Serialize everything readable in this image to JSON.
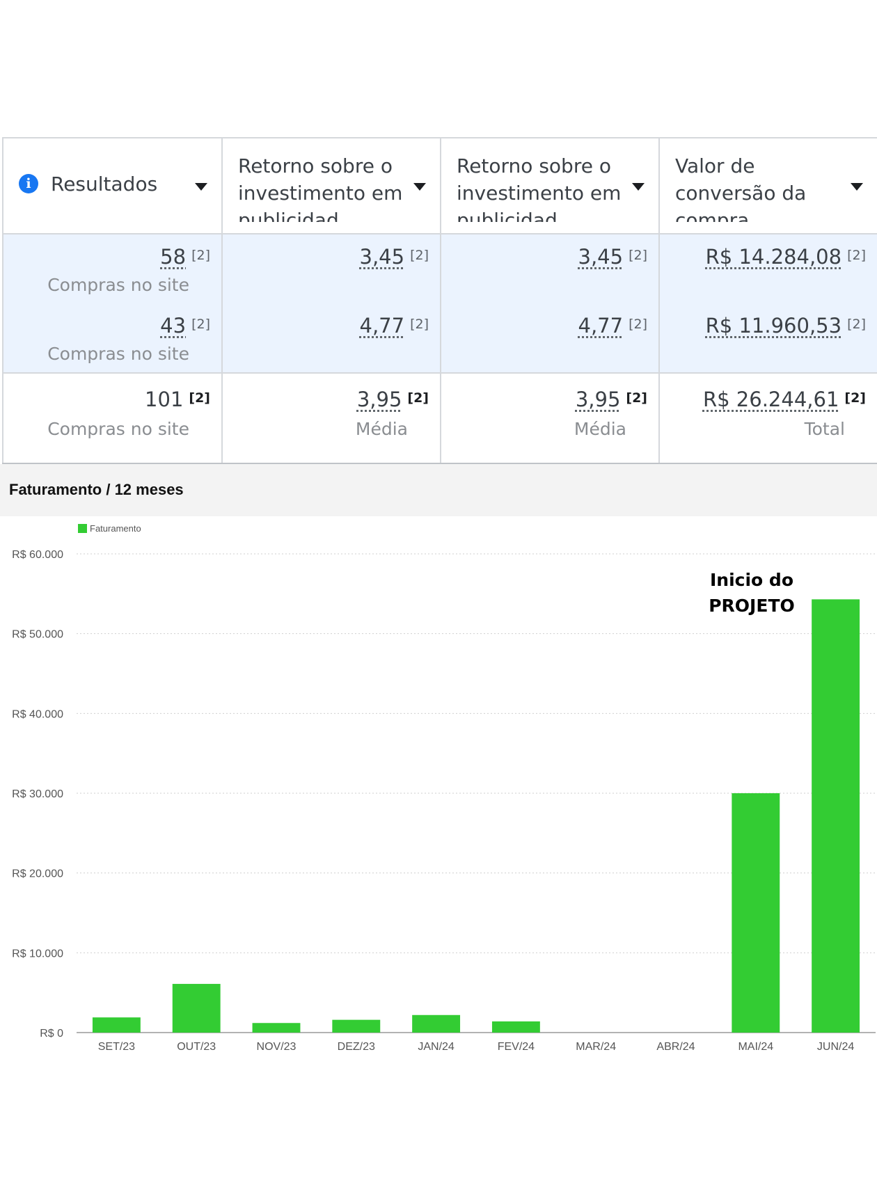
{
  "table": {
    "columns": [
      {
        "title": "Resultados"
      },
      {
        "title": "Retorno sobre o investimento em publicidad"
      },
      {
        "title": "Retorno sobre o investimento em publicidad"
      },
      {
        "title": "Valor de conversão da compra"
      }
    ],
    "rows": [
      {
        "cells": [
          {
            "value": "58",
            "note": "[2]",
            "sub": "Compras no site"
          },
          {
            "value": "3,45",
            "note": "[2]"
          },
          {
            "value": "3,45",
            "note": "[2]"
          },
          {
            "value": "R$ 14.284,08",
            "note": "[2]"
          }
        ]
      },
      {
        "cells": [
          {
            "value": "43",
            "note": "[2]",
            "sub": "Compras no site"
          },
          {
            "value": "4,77",
            "note": "[2]"
          },
          {
            "value": "4,77",
            "note": "[2]"
          },
          {
            "value": "R$ 11.960,53",
            "note": "[2]"
          }
        ]
      }
    ],
    "totals": [
      {
        "value": "101",
        "note": "[2]",
        "sub": "Compras no site"
      },
      {
        "value": "3,95",
        "note": "[2]",
        "sub": "Média"
      },
      {
        "value": "3,95",
        "note": "[2]",
        "sub": "Média"
      },
      {
        "value": "R$ 26.244,61",
        "note": "[2]",
        "sub": "Total"
      }
    ]
  },
  "chart_header": "Faturamento / 12 meses",
  "annotation": {
    "line1": "Inicio do",
    "line2": "PROJETO"
  },
  "colors": {
    "bar": "#33cc33",
    "info_icon": "#1877f2",
    "row_highlight": "#ebf3fe"
  },
  "chart_data": {
    "type": "bar",
    "title": "Faturamento / 12 meses",
    "categories": [
      "SET/23",
      "OUT/23",
      "NOV/23",
      "DEZ/23",
      "JAN/24",
      "FEV/24",
      "MAR/24",
      "ABR/24",
      "MAI/24",
      "JUN/24"
    ],
    "series": [
      {
        "name": "Faturamento",
        "values": [
          1900,
          6100,
          1200,
          1600,
          2200,
          1400,
          0,
          0,
          30000,
          54300
        ]
      }
    ],
    "ylim": [
      0,
      60000
    ],
    "yticks": [
      0,
      10000,
      20000,
      30000,
      40000,
      50000,
      60000
    ],
    "ytick_labels": [
      "R$ 0",
      "R$ 10.000",
      "R$ 20.000",
      "R$ 30.000",
      "R$ 40.000",
      "R$ 50.000",
      "R$ 60.000"
    ],
    "grid": true,
    "legend": "top-left"
  }
}
